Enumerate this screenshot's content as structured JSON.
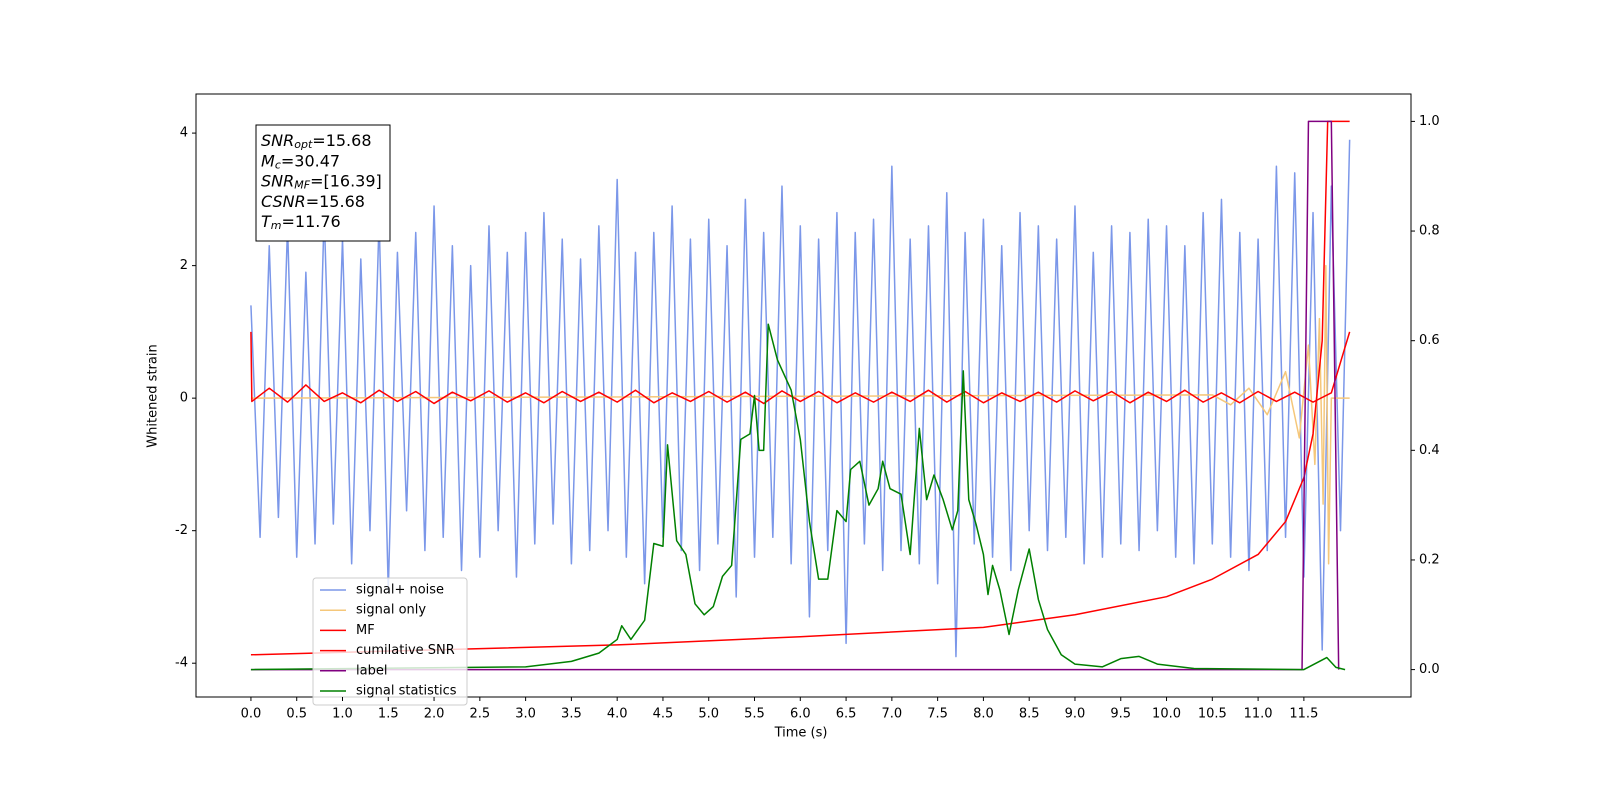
{
  "chart_data": {
    "type": "line",
    "xlabel": "Time (s)",
    "ylabel": "Whitened strain",
    "xlim": [
      -0.6,
      12.67
    ],
    "ylim": [
      -4.51,
      4.59
    ],
    "y2lim": [
      -0.05,
      1.05
    ],
    "xticks": [
      {
        "value": 0,
        "label": "0.0"
      },
      0.5,
      {
        "value": 1,
        "label": "1.0"
      },
      1.5,
      {
        "value": 2,
        "label": "2.0"
      },
      2.5,
      {
        "value": 3,
        "label": "3.0"
      },
      3.5,
      {
        "value": 4,
        "label": "4.0"
      },
      4.5,
      {
        "value": 5,
        "label": "5.0"
      },
      5.5,
      {
        "value": 6,
        "label": "6.0"
      },
      6.5,
      {
        "value": 7,
        "label": "7.0"
      },
      7.5,
      {
        "value": 8,
        "label": "8.0"
      },
      8.5,
      {
        "value": 9,
        "label": "9.0"
      },
      9.5,
      {
        "value": 10,
        "label": "10.0"
      },
      10.5,
      {
        "value": 11,
        "label": "11.0"
      },
      11.5
    ],
    "yticks": [
      -4,
      -2,
      0,
      2,
      4
    ],
    "y2ticks": [
      {
        "value": 0,
        "label": "0.0"
      },
      0.2,
      0.4,
      0.6,
      0.8,
      {
        "value": 1,
        "label": "1.0"
      }
    ],
    "legend": "lower left",
    "annotations": [
      {
        "symbol": "SNR",
        "subscript": "opt",
        "text": "=15.68"
      },
      {
        "symbol": "M",
        "subscript": "c",
        "text": "=30.47"
      },
      {
        "symbol": "SNR",
        "subscript": "MF",
        "text": "=[16.39]"
      },
      {
        "symbol": "CSNR",
        "subscript": "",
        "text": "=15.68"
      },
      {
        "symbol": "T",
        "subscript": "m",
        "text": "=11.76"
      }
    ],
    "series": [
      {
        "name": "signal+ noise",
        "color": "#7b97e9",
        "x": [
          0,
          0.1,
          0.2,
          0.3,
          0.4,
          0.5,
          0.6,
          0.7,
          0.8,
          0.9,
          1,
          1.1,
          1.2,
          1.3,
          1.4,
          1.5,
          1.6,
          1.7,
          1.8,
          1.9,
          2,
          2.1,
          2.2,
          2.3,
          2.4,
          2.5,
          2.6,
          2.7,
          2.8,
          2.9,
          3,
          3.1,
          3.2,
          3.3,
          3.4,
          3.5,
          3.6,
          3.7,
          3.8,
          3.9,
          4,
          4.1,
          4.2,
          4.3,
          4.4,
          4.5,
          4.6,
          4.7,
          4.8,
          4.9,
          5,
          5.1,
          5.2,
          5.3,
          5.4,
          5.5,
          5.6,
          5.7,
          5.8,
          5.9,
          6,
          6.1,
          6.2,
          6.3,
          6.4,
          6.5,
          6.6,
          6.7,
          6.8,
          6.9,
          7,
          7.1,
          7.2,
          7.3,
          7.4,
          7.5,
          7.6,
          7.7,
          7.8,
          7.9,
          8,
          8.1,
          8.2,
          8.3,
          8.4,
          8.5,
          8.6,
          8.7,
          8.8,
          8.9,
          9,
          9.1,
          9.2,
          9.3,
          9.4,
          9.5,
          9.6,
          9.7,
          9.8,
          9.9,
          10,
          10.1,
          10.2,
          10.3,
          10.4,
          10.5,
          10.6,
          10.7,
          10.8,
          10.9,
          11,
          11.1,
          11.2,
          11.3,
          11.4,
          11.5,
          11.6,
          11.7,
          11.8,
          11.9,
          12
        ],
        "values": [
          1.4,
          -2.1,
          2.3,
          -1.8,
          2.6,
          -2.4,
          1.9,
          -2.2,
          2.8,
          -1.9,
          2.4,
          -2.5,
          2.1,
          -2.0,
          2.7,
          -2.9,
          2.2,
          -1.7,
          2.5,
          -2.3,
          2.9,
          -2.1,
          2.3,
          -2.6,
          2.0,
          -2.4,
          2.6,
          -2.0,
          2.2,
          -2.7,
          2.5,
          -2.2,
          2.8,
          -1.9,
          2.4,
          -2.5,
          2.1,
          -2.3,
          2.6,
          -2.0,
          3.3,
          -2.4,
          2.2,
          -2.8,
          2.5,
          -2.1,
          2.9,
          -2.3,
          2.4,
          -2.6,
          2.7,
          -2.2,
          2.3,
          -3.0,
          3.0,
          -2.4,
          2.5,
          -2.1,
          3.2,
          -2.5,
          2.6,
          -3.3,
          2.4,
          -2.3,
          2.8,
          -3.7,
          2.5,
          -2.2,
          2.7,
          -2.6,
          3.5,
          -2.3,
          2.4,
          -2.5,
          2.6,
          -2.8,
          3.1,
          -3.9,
          2.5,
          -2.2,
          2.7,
          -2.4,
          2.3,
          -2.6,
          2.8,
          -2.0,
          2.6,
          -2.3,
          2.4,
          -2.1,
          2.9,
          -2.5,
          2.2,
          -2.4,
          2.6,
          -2.2,
          2.5,
          -2.3,
          2.7,
          -2.0,
          2.6,
          -2.4,
          2.3,
          -2.5,
          2.8,
          -2.2,
          3.0,
          -2.4,
          2.5,
          -2.6,
          2.4,
          -2.3,
          3.5,
          -2.1,
          3.4,
          -2.7,
          2.8,
          -3.8,
          3.2,
          -2.0,
          3.9
        ]
      },
      {
        "name": "signal only",
        "color": "#f5c77a",
        "x": [
          0,
          10.5,
          10.7,
          10.9,
          11.1,
          11.3,
          11.45,
          11.55,
          11.62,
          11.67,
          11.71,
          11.74,
          11.77,
          11.8,
          12
        ],
        "values": [
          0,
          0.05,
          -0.1,
          0.15,
          -0.25,
          0.4,
          -0.6,
          0.8,
          -1.0,
          1.2,
          -1.6,
          2.0,
          -2.5,
          0,
          0
        ]
      },
      {
        "name": "MF",
        "color": "#ff0000",
        "x": [
          0,
          0.01,
          0.2,
          0.4,
          0.6,
          0.8,
          1,
          1.2,
          1.4,
          1.6,
          1.8,
          2,
          2.2,
          2.4,
          2.6,
          2.8,
          3,
          3.2,
          3.4,
          3.6,
          3.8,
          4,
          4.2,
          4.4,
          4.6,
          4.8,
          5,
          5.2,
          5.4,
          5.6,
          5.8,
          6,
          6.2,
          6.4,
          6.6,
          6.8,
          7,
          7.2,
          7.4,
          7.6,
          7.8,
          8,
          8.2,
          8.4,
          8.6,
          8.8,
          9,
          9.2,
          9.4,
          9.6,
          9.8,
          10,
          10.2,
          10.4,
          10.6,
          10.8,
          11,
          11.2,
          11.4,
          11.6,
          11.8,
          12
        ],
        "values": [
          1.0,
          -0.05,
          0.15,
          -0.06,
          0.2,
          -0.05,
          0.08,
          -0.07,
          0.12,
          -0.05,
          0.1,
          -0.08,
          0.09,
          -0.04,
          0.11,
          -0.06,
          0.08,
          -0.07,
          0.1,
          -0.05,
          0.09,
          -0.06,
          0.12,
          -0.07,
          0.08,
          -0.05,
          0.1,
          -0.06,
          0.09,
          -0.08,
          0.11,
          -0.05,
          0.1,
          -0.07,
          0.08,
          -0.06,
          0.09,
          -0.05,
          0.12,
          -0.06,
          0.1,
          -0.07,
          0.08,
          -0.05,
          0.09,
          -0.06,
          0.11,
          -0.04,
          0.1,
          -0.07,
          0.09,
          -0.05,
          0.12,
          -0.06,
          0.08,
          -0.07,
          0.1,
          -0.05,
          0.09,
          -0.06,
          0.08,
          1.0
        ]
      },
      {
        "name": "cumilative SNR",
        "color": "#ff0000",
        "axis": "y2",
        "x": [
          0,
          2,
          4,
          6,
          8,
          9,
          10,
          10.5,
          11,
          11.3,
          11.5,
          11.6,
          11.7,
          11.76,
          12
        ],
        "values": [
          0.027,
          0.036,
          0.045,
          0.06,
          0.077,
          0.1,
          0.133,
          0.165,
          0.21,
          0.27,
          0.35,
          0.43,
          0.6,
          1.0,
          1.0
        ]
      },
      {
        "name": "label",
        "color": "#800080",
        "axis": "y2",
        "x": [
          0,
          11.48,
          11.55,
          11.8,
          11.88
        ],
        "values": [
          0,
          0,
          1,
          1,
          0
        ]
      },
      {
        "name": "signal statistics",
        "color": "#008000",
        "axis": "y2",
        "x": [
          0,
          3,
          3.5,
          3.8,
          4,
          4.05,
          4.15,
          4.3,
          4.4,
          4.5,
          4.55,
          4.65,
          4.75,
          4.85,
          4.95,
          5.05,
          5.15,
          5.25,
          5.35,
          5.45,
          5.5,
          5.55,
          5.6,
          5.65,
          5.75,
          5.9,
          6,
          6.1,
          6.2,
          6.3,
          6.4,
          6.5,
          6.55,
          6.65,
          6.75,
          6.85,
          6.9,
          6.98,
          7.1,
          7.2,
          7.3,
          7.38,
          7.46,
          7.56,
          7.66,
          7.72,
          7.78,
          7.84,
          7.92,
          8,
          8.05,
          8.1,
          8.18,
          8.28,
          8.38,
          8.5,
          8.6,
          8.7,
          8.85,
          9,
          9.3,
          9.5,
          9.7,
          9.9,
          10.3,
          11.5,
          11.75,
          11.85,
          11.95
        ],
        "values": [
          0,
          0.005,
          0.015,
          0.03,
          0.055,
          0.08,
          0.055,
          0.09,
          0.23,
          0.225,
          0.41,
          0.235,
          0.21,
          0.12,
          0.1,
          0.115,
          0.17,
          0.19,
          0.42,
          0.43,
          0.5,
          0.4,
          0.4,
          0.63,
          0.565,
          0.51,
          0.42,
          0.27,
          0.165,
          0.165,
          0.29,
          0.27,
          0.365,
          0.38,
          0.3,
          0.33,
          0.38,
          0.33,
          0.32,
          0.21,
          0.44,
          0.31,
          0.355,
          0.31,
          0.255,
          0.29,
          0.545,
          0.31,
          0.265,
          0.21,
          0.137,
          0.19,
          0.145,
          0.064,
          0.145,
          0.22,
          0.128,
          0.073,
          0.027,
          0.01,
          0.005,
          0.02,
          0.024,
          0.01,
          0.002,
          0,
          0.022,
          0.004,
          0
        ]
      }
    ]
  }
}
